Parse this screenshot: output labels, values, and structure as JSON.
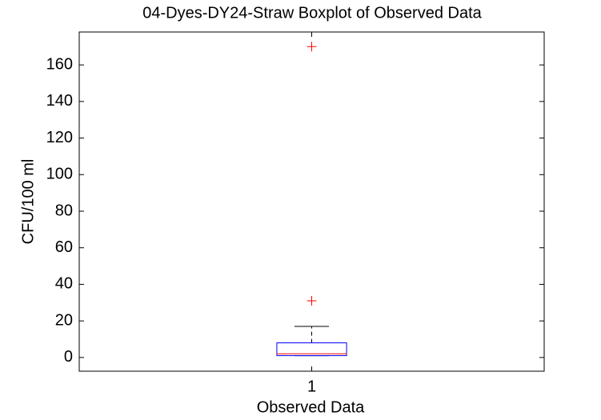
{
  "chart_data": {
    "type": "box",
    "title": "04-Dyes-DY24-Straw Boxplot of Observed Data",
    "xlabel": "Observed Data",
    "ylabel": "CFU/100 ml",
    "categories": [
      "1"
    ],
    "boxes": [
      {
        "whisker_low": 1,
        "q1": 1,
        "median": 2,
        "q3": 8,
        "whisker_high": 17,
        "outliers": [
          31,
          170
        ]
      }
    ],
    "box_color": "#0000ff",
    "median_color": "#ff0000",
    "whisker_color": "#000000",
    "outlier_color": "#ff0000",
    "ylim": [
      -7.5,
      178
    ],
    "yticks": [
      0,
      20,
      40,
      60,
      80,
      100,
      120,
      140,
      160
    ],
    "grid": false
  }
}
